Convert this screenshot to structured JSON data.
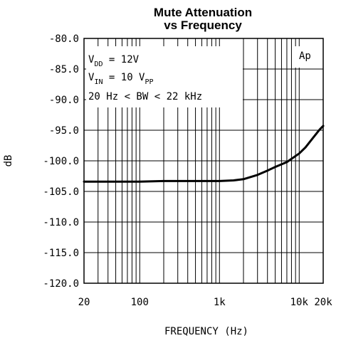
{
  "chart_data": {
    "type": "line",
    "title": "Mute Attenuation",
    "subtitle": "vs Frequency",
    "xlabel": "FREQUENCY (Hz)",
    "ylabel": "dB",
    "xscale": "log",
    "xlim": [
      20,
      20000
    ],
    "ylim": [
      -120,
      -80
    ],
    "grid": true,
    "x_ticks": [
      {
        "value": 20,
        "label": "20"
      },
      {
        "value": 100,
        "label": "100"
      },
      {
        "value": 1000,
        "label": "1k"
      },
      {
        "value": 10000,
        "label": "10k"
      },
      {
        "value": 20000,
        "label": "20k"
      }
    ],
    "y_ticks": [
      {
        "value": -80,
        "label": "-80.0"
      },
      {
        "value": -85,
        "label": "-85.0"
      },
      {
        "value": -90,
        "label": "-90.0"
      },
      {
        "value": -95,
        "label": "-95.0"
      },
      {
        "value": -100,
        "label": "-100.0"
      },
      {
        "value": -105,
        "label": "-105.0"
      },
      {
        "value": -110,
        "label": "-110.0"
      },
      {
        "value": -115,
        "label": "-115.0"
      },
      {
        "value": -120,
        "label": "-120.0"
      }
    ],
    "series": [
      {
        "x": [
          20,
          30,
          50,
          100,
          200,
          300,
          500,
          700,
          1000,
          1500,
          2000,
          3000,
          4000,
          5000,
          7000,
          10000,
          12000,
          15000,
          18000,
          20000
        ],
        "y": [
          -103.4,
          -103.4,
          -103.4,
          -103.4,
          -103.3,
          -103.3,
          -103.3,
          -103.3,
          -103.3,
          -103.2,
          -103.0,
          -102.3,
          -101.6,
          -101.0,
          -100.2,
          -98.8,
          -97.8,
          -96.2,
          -94.9,
          -94.3
        ]
      }
    ],
    "annotations": {
      "vdd": {
        "main": "V",
        "sub": "DD",
        "rest": " = 12V"
      },
      "vin": {
        "main": "V",
        "sub": "IN",
        "mid": " = 10 V",
        "sub2": "PP"
      },
      "bw": "20 Hz < BW < 22 kHz",
      "ap": "Ap"
    }
  }
}
